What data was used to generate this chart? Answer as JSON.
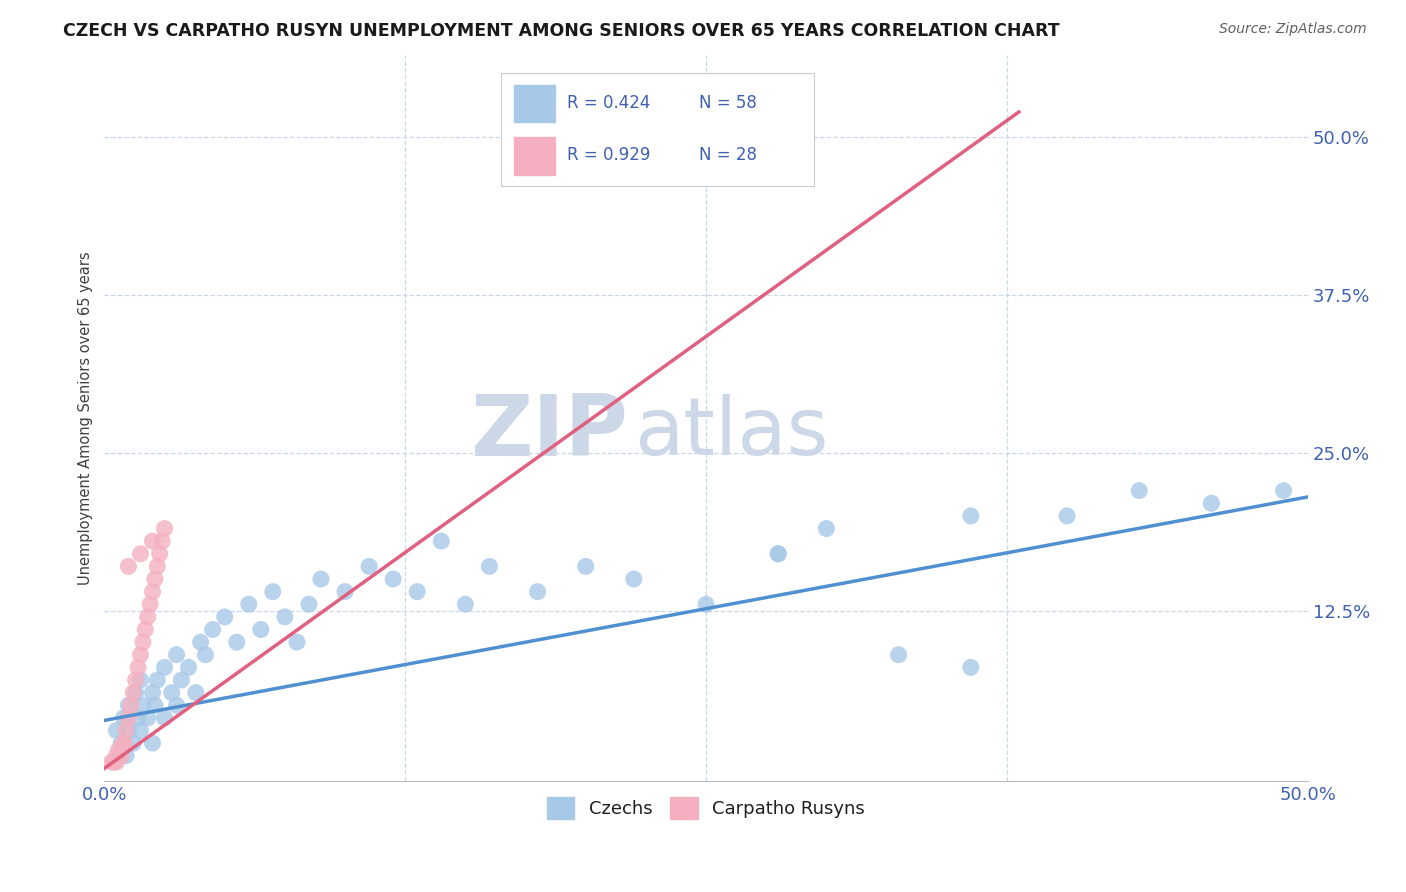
{
  "title": "CZECH VS CARPATHO RUSYN UNEMPLOYMENT AMONG SENIORS OVER 65 YEARS CORRELATION CHART",
  "source": "Source: ZipAtlas.com",
  "ylabel": "Unemployment Among Seniors over 65 years",
  "xlim": [
    0,
    0.5
  ],
  "ylim": [
    -0.01,
    0.565
  ],
  "xtick_left_label": "0.0%",
  "xtick_right_label": "50.0%",
  "yticks": [
    0.0,
    0.125,
    0.25,
    0.375,
    0.5
  ],
  "yticklabels": [
    "",
    "12.5%",
    "25.0%",
    "37.5%",
    "50.0%"
  ],
  "czech_R": "0.424",
  "czech_N": "58",
  "rusyn_R": "0.929",
  "rusyn_N": "28",
  "czech_color": "#a8c8e8",
  "rusyn_color": "#f4b0c0",
  "czech_line_color": "#5090d0",
  "rusyn_line_color": "#e06080",
  "background_color": "#ffffff",
  "watermark_zip": "ZIP",
  "watermark_atlas": "atlas",
  "watermark_color": "#ccd8e8",
  "grid_color": "#c8d8ea",
  "title_color": "#1a1a1a",
  "axis_label_color": "#4060b0",
  "source_color": "#606060",
  "czech_line_x0": 0.0,
  "czech_line_y0": 0.038,
  "czech_line_x1": 0.5,
  "czech_line_y1": 0.215,
  "rusyn_line_x0": 0.0,
  "rusyn_line_y0": 0.0,
  "rusyn_line_x1": 0.38,
  "rusyn_line_y1": 0.52,
  "czech_scatter_x": [
    0.005,
    0.007,
    0.008,
    0.009,
    0.01,
    0.01,
    0.012,
    0.013,
    0.014,
    0.015,
    0.015,
    0.016,
    0.018,
    0.02,
    0.02,
    0.021,
    0.022,
    0.025,
    0.025,
    0.028,
    0.03,
    0.03,
    0.032,
    0.035,
    0.038,
    0.04,
    0.042,
    0.045,
    0.05,
    0.055,
    0.06,
    0.065,
    0.07,
    0.075,
    0.08,
    0.085,
    0.09,
    0.1,
    0.11,
    0.12,
    0.13,
    0.14,
    0.15,
    0.16,
    0.18,
    0.2,
    0.22,
    0.25,
    0.28,
    0.3,
    0.33,
    0.36,
    0.4,
    0.43,
    0.46,
    0.49,
    0.28,
    0.36
  ],
  "czech_scatter_y": [
    0.03,
    0.02,
    0.04,
    0.01,
    0.05,
    0.03,
    0.02,
    0.06,
    0.04,
    0.03,
    0.07,
    0.05,
    0.04,
    0.06,
    0.02,
    0.05,
    0.07,
    0.08,
    0.04,
    0.06,
    0.05,
    0.09,
    0.07,
    0.08,
    0.06,
    0.1,
    0.09,
    0.11,
    0.12,
    0.1,
    0.13,
    0.11,
    0.14,
    0.12,
    0.1,
    0.13,
    0.15,
    0.14,
    0.16,
    0.15,
    0.14,
    0.18,
    0.13,
    0.16,
    0.14,
    0.16,
    0.15,
    0.13,
    0.17,
    0.19,
    0.09,
    0.08,
    0.2,
    0.22,
    0.21,
    0.22,
    0.17,
    0.2
  ],
  "rusyn_scatter_x": [
    0.003,
    0.004,
    0.005,
    0.006,
    0.007,
    0.008,
    0.009,
    0.01,
    0.011,
    0.012,
    0.013,
    0.014,
    0.015,
    0.016,
    0.017,
    0.018,
    0.019,
    0.02,
    0.021,
    0.022,
    0.023,
    0.024,
    0.005,
    0.008,
    0.01,
    0.015,
    0.02,
    0.025
  ],
  "rusyn_scatter_y": [
    0.005,
    0.005,
    0.01,
    0.015,
    0.01,
    0.02,
    0.03,
    0.04,
    0.05,
    0.06,
    0.07,
    0.08,
    0.09,
    0.1,
    0.11,
    0.12,
    0.13,
    0.14,
    0.15,
    0.16,
    0.17,
    0.18,
    0.005,
    0.02,
    0.16,
    0.17,
    0.18,
    0.19
  ]
}
